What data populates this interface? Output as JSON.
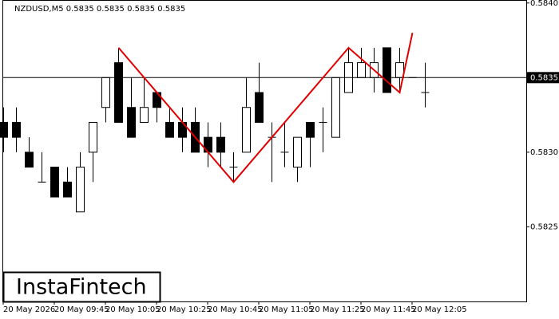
{
  "chart_data": {
    "type": "candlestick",
    "title": "NZDUSD,M5  0.5835 0.5835 0.5835 0.5835",
    "categories": [
      "20 May 2026",
      null,
      null,
      null,
      "20 May 09:45",
      null,
      null,
      null,
      "20 May 10:05",
      null,
      null,
      null,
      "20 May 10:25",
      null,
      null,
      null,
      "20 May 10:45",
      null,
      null,
      null,
      "20 May 11:05",
      null,
      null,
      null,
      "20 May 11:25",
      null,
      null,
      null,
      "20 May 11:45",
      null,
      null,
      null,
      "20 May 12:05",
      null
    ],
    "open": [
      0.5832,
      0.5832,
      0.583,
      0.5828,
      0.5829,
      0.5828,
      0.5826,
      0.583,
      0.5833,
      0.5836,
      0.5833,
      0.5832,
      0.5834,
      0.5832,
      0.5832,
      0.5832,
      0.5831,
      0.5831,
      0.5829,
      0.583,
      0.5834,
      0.5831,
      0.583,
      0.5829,
      0.5832,
      0.5832,
      0.5831,
      0.5834,
      0.5835,
      0.5835,
      0.5837,
      0.5835,
      0.5835,
      0.5834
    ],
    "high": [
      0.5833,
      0.5833,
      0.5831,
      0.583,
      0.5829,
      0.5829,
      0.583,
      0.5832,
      0.5835,
      0.5837,
      0.5835,
      0.5835,
      0.5834,
      0.5833,
      0.5833,
      0.5833,
      0.5832,
      0.5832,
      0.583,
      0.5835,
      0.5836,
      0.5832,
      0.5832,
      0.5831,
      0.5832,
      0.5833,
      0.5835,
      0.5837,
      0.5837,
      0.5837,
      0.5837,
      0.5837,
      0.5835,
      0.5836
    ],
    "low": [
      0.583,
      0.583,
      0.5829,
      0.5828,
      0.5827,
      0.5827,
      0.5826,
      0.5828,
      0.5832,
      0.5832,
      0.5831,
      0.5832,
      0.5832,
      0.5831,
      0.583,
      0.583,
      0.5829,
      0.5829,
      0.5828,
      0.583,
      0.5832,
      0.5828,
      0.5829,
      0.5828,
      0.5829,
      0.583,
      0.5831,
      0.5834,
      0.5835,
      0.5834,
      0.5834,
      0.5834,
      0.5835,
      0.5833
    ],
    "close": [
      0.5831,
      0.5831,
      0.5829,
      0.5828,
      0.5827,
      0.5827,
      0.5829,
      0.5832,
      0.5835,
      0.5832,
      0.5831,
      0.5833,
      0.5833,
      0.5831,
      0.5831,
      0.583,
      0.583,
      0.583,
      0.5829,
      0.5833,
      0.5832,
      0.5831,
      0.583,
      0.5831,
      0.5831,
      0.5832,
      0.5835,
      0.5836,
      0.5836,
      0.5836,
      0.5834,
      0.5836,
      0.5835,
      0.5834
    ],
    "pattern": {
      "color": "#e00000",
      "x": [
        9,
        18,
        27,
        31,
        32
      ],
      "y": [
        0.5837,
        0.5828,
        0.5837,
        0.5834,
        0.5838
      ]
    },
    "current_price": 0.5835,
    "ylim": [
      0.582,
      0.58402
    ],
    "yticks": [
      0.5825,
      {
        "value": 0.583,
        "label": "0.5830"
      },
      0.5835,
      {
        "value": 0.584,
        "label": "0.5840"
      }
    ],
    "logo": "InstaFintech"
  }
}
